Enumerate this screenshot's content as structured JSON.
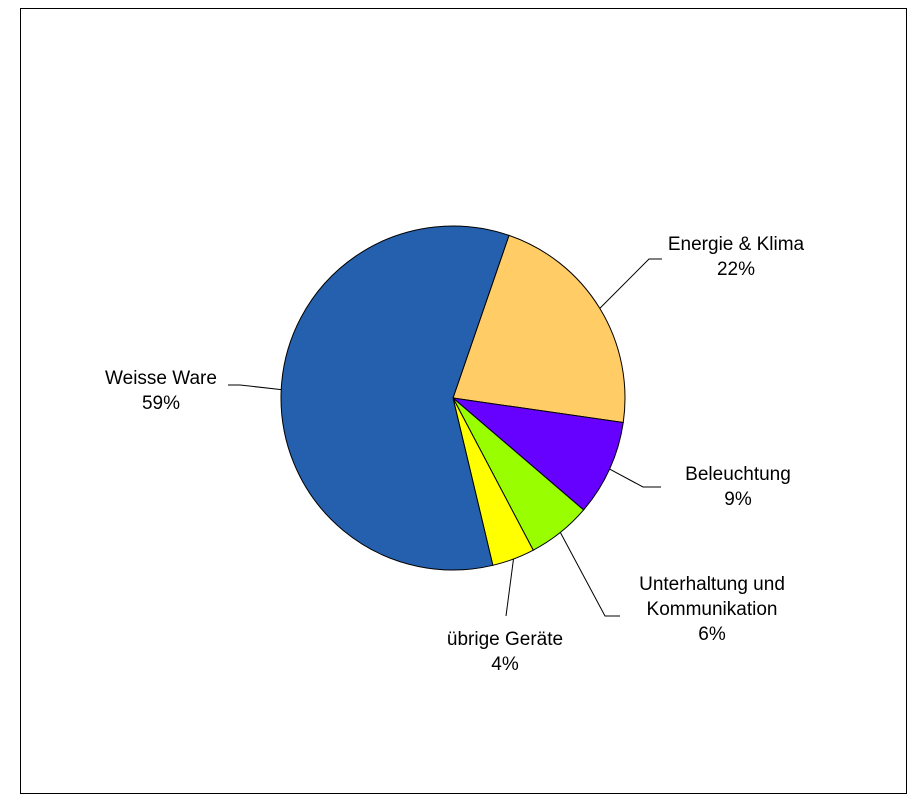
{
  "chart_data": {
    "type": "pie",
    "title": "",
    "slices": [
      {
        "label": "Energie & Klima",
        "value": 22,
        "percent_text": "22%",
        "color": "#FFCC66"
      },
      {
        "label": "Beleuchtung",
        "value": 9,
        "percent_text": "9%",
        "color": "#6600FF"
      },
      {
        "label": "Unterhaltung und Kommunikation",
        "label_lines": [
          "Unterhaltung und",
          "Kommunikation"
        ],
        "value": 6,
        "percent_text": "6%",
        "color": "#99FF00"
      },
      {
        "label": "übrige Geräte",
        "value": 4,
        "percent_text": "4%",
        "color": "#FFFF00"
      },
      {
        "label": "Weisse Ware",
        "value": 59,
        "percent_text": "59%",
        "color": "#2560AE"
      }
    ],
    "legend": "none",
    "data_labels": "outside with leader lines"
  }
}
